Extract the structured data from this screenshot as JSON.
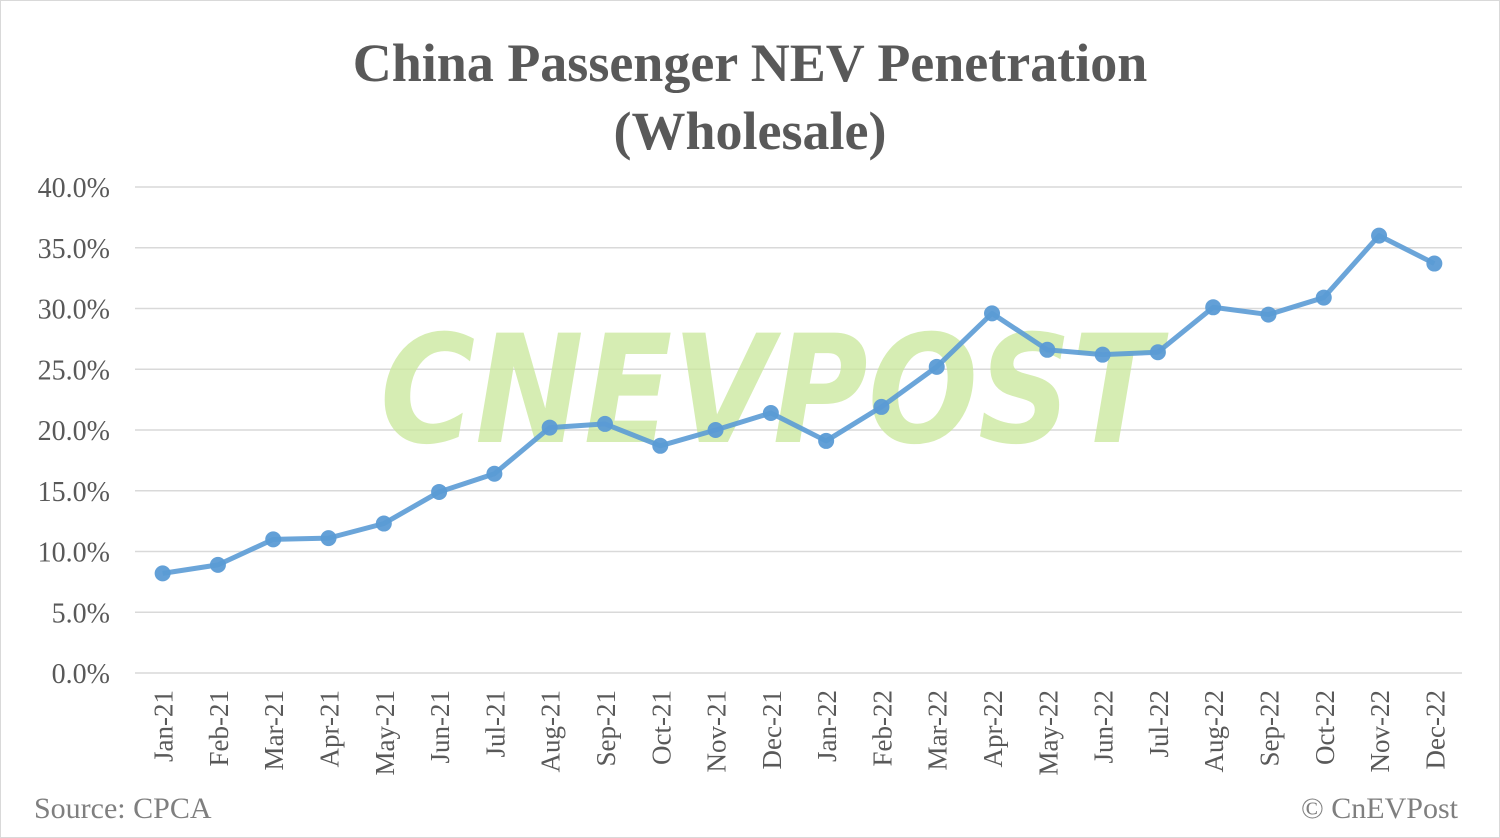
{
  "chart_data": {
    "type": "line",
    "title_line1": "China Passenger NEV Penetration",
    "title_line2": "(Wholesale)",
    "categories": [
      "Jan-21",
      "Feb-21",
      "Mar-21",
      "Apr-21",
      "May-21",
      "Jun-21",
      "Jul-21",
      "Aug-21",
      "Sep-21",
      "Oct-21",
      "Nov-21",
      "Dec-21",
      "Jan-22",
      "Feb-22",
      "Mar-22",
      "Apr-22",
      "May-22",
      "Jun-22",
      "Jul-22",
      "Aug-22",
      "Sep-22",
      "Oct-22",
      "Nov-22",
      "Dec-22"
    ],
    "values": [
      8.2,
      8.9,
      11.0,
      11.1,
      12.3,
      14.9,
      16.4,
      20.2,
      20.5,
      18.7,
      20.0,
      21.4,
      19.1,
      21.9,
      25.2,
      29.6,
      26.6,
      26.2,
      26.4,
      30.1,
      29.5,
      30.9,
      36.0,
      33.7
    ],
    "ylim": [
      0,
      40
    ],
    "yticks": [
      "0.0%",
      "5.0%",
      "10.0%",
      "15.0%",
      "20.0%",
      "25.0%",
      "30.0%",
      "35.0%",
      "40.0%"
    ],
    "grid": true,
    "line_color": "#5b9bd5",
    "watermark": "CNEVPOST",
    "watermark_color": "#c9e89a"
  },
  "footer": {
    "source": "Source: CPCA",
    "copyright": "© CnEVPost"
  }
}
